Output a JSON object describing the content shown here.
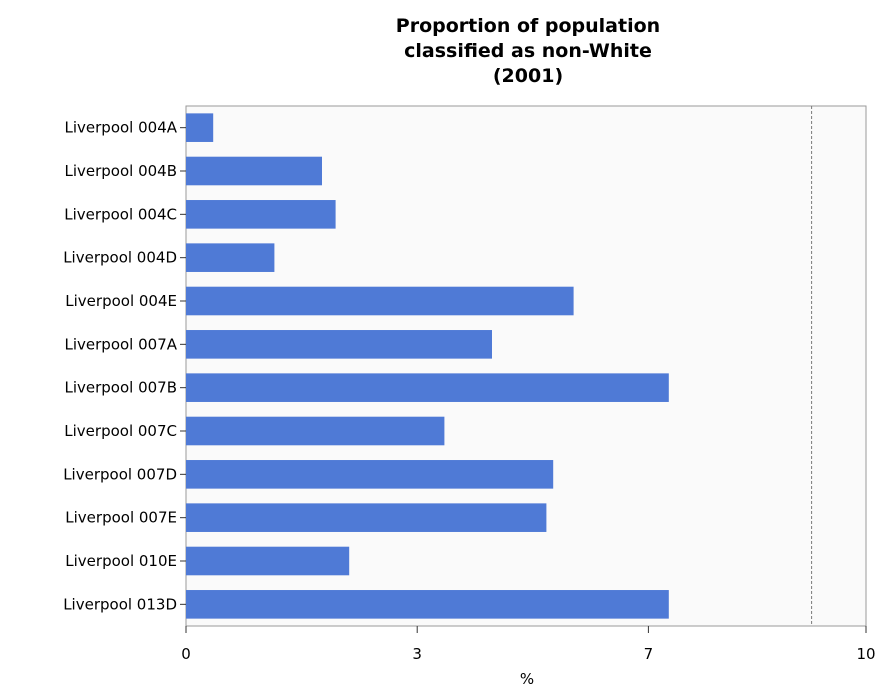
{
  "chart_data": {
    "type": "bar",
    "orientation": "horizontal",
    "title_lines": [
      "Proportion of population",
      "classified as non-White",
      "(2001)"
    ],
    "xlabel": "%",
    "ylabel": "",
    "categories": [
      "Liverpool 004A",
      "Liverpool 004B",
      "Liverpool 004C",
      "Liverpool 004D",
      "Liverpool 004E",
      "Liverpool 007A",
      "Liverpool 007B",
      "Liverpool 007C",
      "Liverpool 007D",
      "Liverpool 007E",
      "Liverpool 010E",
      "Liverpool 013D"
    ],
    "values": [
      0.4,
      2.0,
      2.2,
      1.3,
      5.7,
      4.5,
      7.1,
      3.8,
      5.4,
      5.3,
      2.4,
      7.1
    ],
    "xlim": [
      0,
      10
    ],
    "xticks": [
      {
        "value": 0,
        "label": "0"
      },
      {
        "value": 3.4,
        "label": "3"
      },
      {
        "value": 6.8,
        "label": "7"
      },
      {
        "value": 10,
        "label": "10"
      }
    ],
    "reference_line": {
      "value": 9.2,
      "style": "dashed"
    },
    "grid": false,
    "colors": {
      "bar": "#4f7ad6",
      "background": "#fafafa",
      "axis": "#999999",
      "reference": "#7a7a7a"
    }
  }
}
